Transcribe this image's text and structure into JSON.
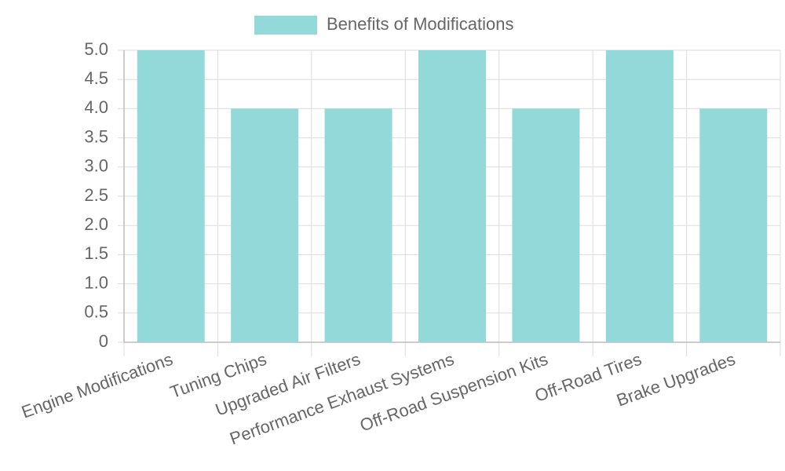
{
  "chart_data": {
    "type": "bar",
    "categories": [
      "Engine Modifications",
      "Tuning Chips",
      "Upgraded Air Filters",
      "Performance Exhaust Systems",
      "Off-Road Suspension Kits",
      "Off-Road Tires",
      "Brake Upgrades"
    ],
    "series": [
      {
        "name": "Benefits of Modifications",
        "color": "#93d9d9",
        "values": [
          5,
          4,
          4,
          5,
          4,
          5,
          4
        ]
      }
    ],
    "ylim": [
      0,
      5
    ],
    "yticks": [
      0,
      0.5,
      {
        "value": 1,
        "label": "1.0"
      },
      1.5,
      {
        "value": 2,
        "label": "2.0"
      },
      2.5,
      {
        "value": 3,
        "label": "3.0"
      },
      3.5,
      {
        "value": 4,
        "label": "4.0"
      },
      4.5,
      {
        "value": 5,
        "label": "5.0"
      }
    ],
    "grid": true,
    "legend": "top"
  }
}
